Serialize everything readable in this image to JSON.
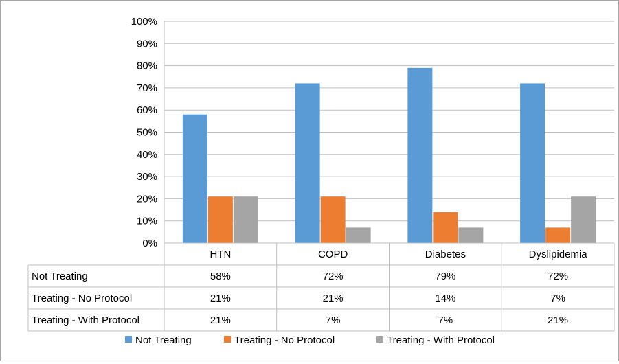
{
  "chart_data": {
    "type": "bar",
    "categories": [
      "HTN",
      "COPD",
      "Diabetes",
      "Dyslipidemia"
    ],
    "series": [
      {
        "name": "Not Treating",
        "values": [
          58,
          72,
          79,
          72
        ],
        "labels": [
          "58%",
          "72%",
          "79%",
          "72%"
        ],
        "color": "#5b9bd5"
      },
      {
        "name": "Treating - No Protocol",
        "values": [
          21,
          21,
          14,
          7
        ],
        "labels": [
          "21%",
          "21%",
          "14%",
          "7%"
        ],
        "color": "#ed7d31"
      },
      {
        "name": "Treating - With Protocol",
        "values": [
          21,
          7,
          7,
          21
        ],
        "labels": [
          "21%",
          "7%",
          "7%",
          "21%"
        ],
        "color": "#a5a5a5"
      }
    ],
    "y_ticks": [
      "0%",
      "10%",
      "20%",
      "30%",
      "40%",
      "50%",
      "60%",
      "70%",
      "80%",
      "90%",
      "100%"
    ],
    "ylim": [
      0,
      100
    ],
    "grid": true,
    "legend_position": "bottom",
    "data_table": true,
    "title": "",
    "xlabel": "",
    "ylabel": ""
  }
}
